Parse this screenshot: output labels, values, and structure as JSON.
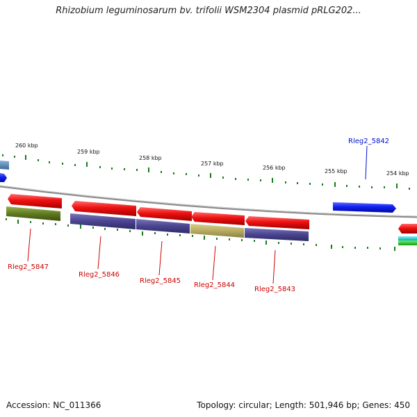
{
  "header": {
    "title": "Rhizobium leguminosarum bv. trifolii WSM2304 plasmid pRLG202..."
  },
  "footer": {
    "accession": "Accession: NC_011366",
    "topology": "Topology: circular; Length: 501,946 bp; Genes: 450"
  },
  "scale": {
    "unit": "kbp",
    "ticks": [
      {
        "label": "260 kbp",
        "kbp": 260
      },
      {
        "label": "259 kbp",
        "kbp": 259
      },
      {
        "label": "258 kbp",
        "kbp": 258
      },
      {
        "label": "257 kbp",
        "kbp": 257
      },
      {
        "label": "256 kbp",
        "kbp": 256
      },
      {
        "label": "255 kbp",
        "kbp": 255
      },
      {
        "label": "254 kbp",
        "kbp": 254
      }
    ]
  },
  "genes": [
    {
      "name": "Rleg2_5847",
      "strand": "reverse",
      "color": "#e01010"
    },
    {
      "name": "Rleg2_5846",
      "strand": "reverse",
      "color": "#e01010"
    },
    {
      "name": "Rleg2_5845",
      "strand": "reverse",
      "color": "#e01010"
    },
    {
      "name": "Rleg2_5844",
      "strand": "reverse",
      "color": "#e01010"
    },
    {
      "name": "Rleg2_5843",
      "strand": "reverse",
      "color": "#e01010"
    },
    {
      "name": "Rleg2_5842",
      "strand": "forward",
      "color": "#1a2ee0"
    }
  ],
  "colors": {
    "red_label": "#cc0000",
    "blue_label": "#0010cc",
    "tick": "#1a7a1a",
    "backbone": "#8a8a8a"
  }
}
